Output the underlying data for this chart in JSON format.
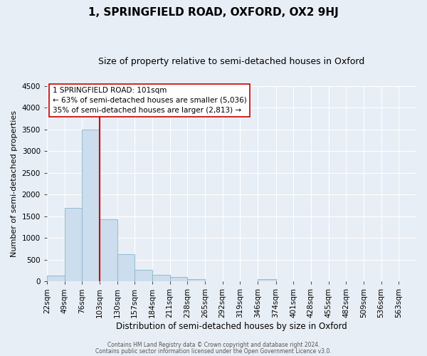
{
  "title": "1, SPRINGFIELD ROAD, OXFORD, OX2 9HJ",
  "subtitle": "Size of property relative to semi-detached houses in Oxford",
  "xlabel": "Distribution of semi-detached houses by size in Oxford",
  "ylabel": "Number of semi-detached properties",
  "bin_labels": [
    "22sqm",
    "49sqm",
    "76sqm",
    "103sqm",
    "130sqm",
    "157sqm",
    "184sqm",
    "211sqm",
    "238sqm",
    "265sqm",
    "292sqm",
    "319sqm",
    "346sqm",
    "374sqm",
    "401sqm",
    "428sqm",
    "455sqm",
    "482sqm",
    "509sqm",
    "536sqm",
    "563sqm"
  ],
  "bin_edges": [
    22,
    49,
    76,
    103,
    130,
    157,
    184,
    211,
    238,
    265,
    292,
    319,
    346,
    374,
    401,
    428,
    455,
    482,
    509,
    536,
    563,
    590
  ],
  "bar_heights": [
    140,
    1700,
    3500,
    1430,
    620,
    260,
    160,
    95,
    50,
    0,
    0,
    0,
    50,
    0,
    0,
    0,
    0,
    0,
    0,
    0,
    0
  ],
  "bar_color": "#ccdded",
  "bar_edge_color": "#8ab4cc",
  "vline_x": 103,
  "vline_color": "#cc0000",
  "ylim": [
    0,
    4500
  ],
  "yticks": [
    0,
    500,
    1000,
    1500,
    2000,
    2500,
    3000,
    3500,
    4000,
    4500
  ],
  "annotation_title": "1 SPRINGFIELD ROAD: 101sqm",
  "annotation_line1": "← 63% of semi-detached houses are smaller (5,036)",
  "annotation_line2": "35% of semi-detached houses are larger (2,813) →",
  "annotation_box_facecolor": "#ffffff",
  "annotation_box_edgecolor": "#cc0000",
  "footer1": "Contains HM Land Registry data © Crown copyright and database right 2024.",
  "footer2": "Contains public sector information licensed under the Open Government Licence v3.0.",
  "bg_color": "#e8eef5",
  "plot_bg_color": "#e8eef5",
  "grid_color": "#ffffff",
  "title_fontsize": 11,
  "subtitle_fontsize": 9,
  "ylabel_fontsize": 8,
  "xlabel_fontsize": 8.5,
  "tick_fontsize": 7.5,
  "ann_fontsize": 7.5,
  "footer_fontsize": 5.5
}
